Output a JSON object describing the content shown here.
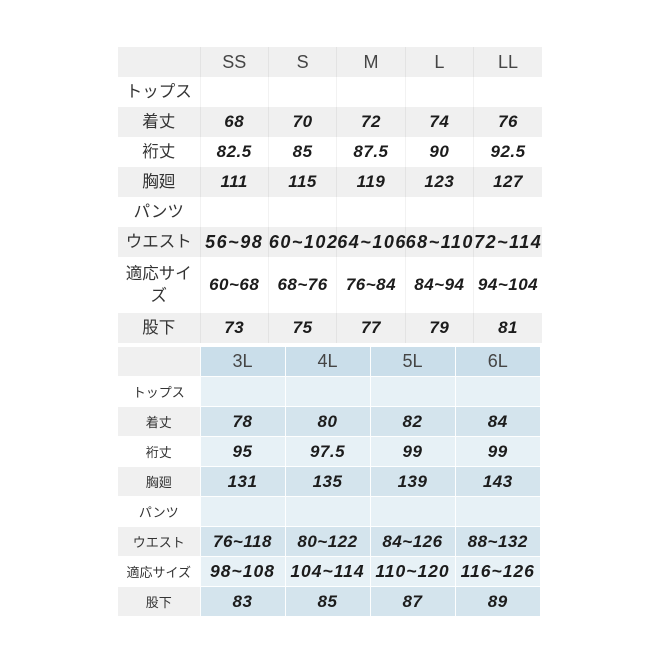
{
  "colors": {
    "background": "#ffffff",
    "stripe_grey": "#f0f0f0",
    "t2_header_blue": "#cadeea",
    "t2_row_blue_dark": "#d4e4ed",
    "t2_row_blue_light": "#e7f1f6",
    "value_text": "#1c1c1c",
    "label_text": "#333333",
    "header_text": "#454545"
  },
  "chart_data": [
    {
      "type": "table",
      "columns": [
        "",
        "SS",
        "S",
        "M",
        "L",
        "LL"
      ],
      "rows": [
        [
          "トップス",
          "",
          "",
          "",
          "",
          ""
        ],
        [
          "着丈",
          "68",
          "70",
          "72",
          "74",
          "76"
        ],
        [
          "裄丈",
          "82.5",
          "85",
          "87.5",
          "90",
          "92.5"
        ],
        [
          "胸廻",
          "111",
          "115",
          "119",
          "123",
          "127"
        ],
        [
          "パンツ",
          "",
          "",
          "",
          "",
          ""
        ],
        [
          "ウエスト",
          "56~98",
          "60~102",
          "64~106",
          "68~110",
          "72~114"
        ],
        [
          "適応サイズ",
          "60~68",
          "68~76",
          "76~84",
          "84~94",
          "94~104"
        ],
        [
          "股下",
          "73",
          "75",
          "77",
          "79",
          "81"
        ]
      ]
    },
    {
      "type": "table",
      "columns": [
        "",
        "3L",
        "4L",
        "5L",
        "6L"
      ],
      "rows": [
        [
          "トップス",
          "",
          "",
          "",
          ""
        ],
        [
          "着丈",
          "78",
          "80",
          "82",
          "84"
        ],
        [
          "裄丈",
          "95",
          "97.5",
          "99",
          "99"
        ],
        [
          "胸廻",
          "131",
          "135",
          "139",
          "143"
        ],
        [
          "パンツ",
          "",
          "",
          "",
          ""
        ],
        [
          "ウエスト",
          "76~118",
          "80~122",
          "84~126",
          "88~132"
        ],
        [
          "適応サイズ",
          "98~108",
          "104~114",
          "110~120",
          "116~126"
        ],
        [
          "股下",
          "83",
          "85",
          "87",
          "89"
        ]
      ]
    }
  ]
}
